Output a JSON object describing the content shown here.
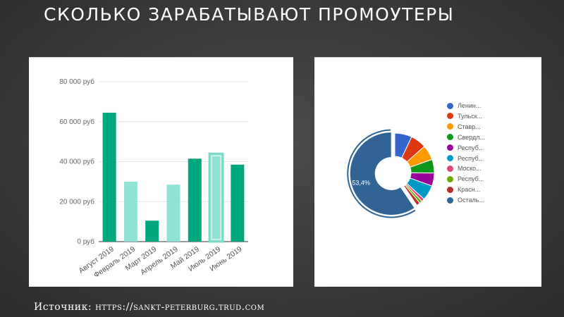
{
  "slide": {
    "title": "СКОЛЬКО ЗАРАБАТЫВАЮТ ПРОМОУТЕРЫ",
    "source_prefix": "Источник: ",
    "source_url": "https://sankt-peterburg.trud.com"
  },
  "chart_data": [
    {
      "type": "bar",
      "categories": [
        "Август 2019",
        "Февраль 2019",
        "Март 2019",
        "Апрель 2019",
        "Май 2019",
        "Июль 2019",
        "Июнь 2019"
      ],
      "values": [
        64500,
        30000,
        10500,
        28500,
        41500,
        44000,
        38500
      ],
      "bar_colors": [
        "#00a67e",
        "#8ee3d5",
        "#00a67e",
        "#8ee3d5",
        "#00a67e",
        "#8ee3d5",
        "#00a67e"
      ],
      "highlighted_index": 5,
      "y_ticks": [
        0,
        20000,
        40000,
        60000,
        80000
      ],
      "y_tick_labels": [
        "0 руб",
        "20 000 руб",
        "40 000 руб",
        "60 000 руб",
        "80 000 руб"
      ],
      "ylim": [
        0,
        80000
      ],
      "grid": true
    },
    {
      "type": "pie",
      "donut": true,
      "labels": [
        "Ленин...",
        "Тульск...",
        "Ставр...",
        "Свердл...",
        "Респуб...",
        "Респуб...",
        "Моско...",
        "Респуб...",
        "Красн...",
        "Осталь..."
      ],
      "values": [
        6.3,
        5.8,
        5.5,
        5.0,
        4.8,
        5.6,
        1.1,
        1.0,
        1.3,
        53.4
      ],
      "colors": [
        "#3366cc",
        "#dc3912",
        "#ff9900",
        "#109618",
        "#990099",
        "#0099c6",
        "#dd4477",
        "#66aa00",
        "#b82e2e",
        "#316395"
      ],
      "highlighted_index": 9,
      "data_label": "53,4%",
      "legend_position": "right"
    }
  ]
}
